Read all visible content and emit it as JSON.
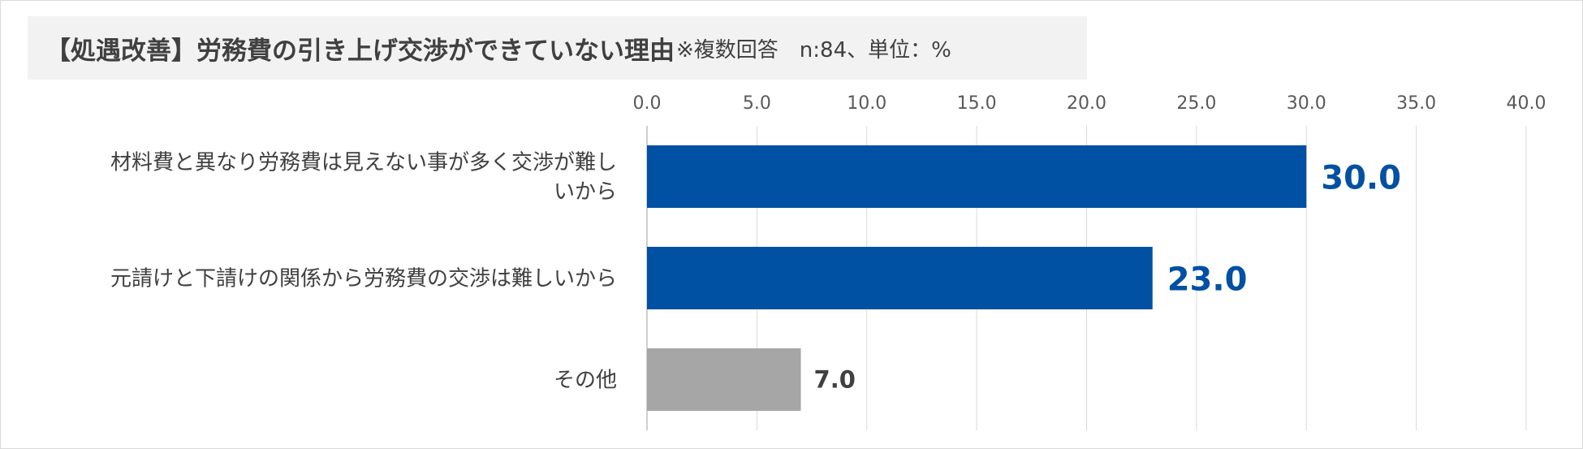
{
  "title": {
    "main": "【処遇改善】労務費の引き上げ交渉ができていない理由",
    "sub": "※複数回答　n:84、単位：%"
  },
  "chart_data": {
    "type": "bar",
    "orientation": "horizontal",
    "categories": [
      [
        "材料費と異なり労務費は見えない事が多く交渉が難し",
        "いから"
      ],
      [
        "元請けと下請けの関係から労務費の交渉は難しいから"
      ],
      [
        "その他"
      ]
    ],
    "values": [
      30.0,
      23.0,
      7.0
    ],
    "bar_colors": [
      "#0050a3",
      "#0050a3",
      "#a6a6a6"
    ],
    "label_colors": [
      "#0050a3",
      "#0050a3",
      "#404040"
    ],
    "xlim": [
      0,
      40
    ],
    "ticks": [
      "0.0",
      "5.0",
      "10.0",
      "15.0",
      "20.0",
      "25.0",
      "30.0",
      "35.0",
      "40.0"
    ],
    "tick_position": "top",
    "grid": true,
    "legend": "none"
  }
}
